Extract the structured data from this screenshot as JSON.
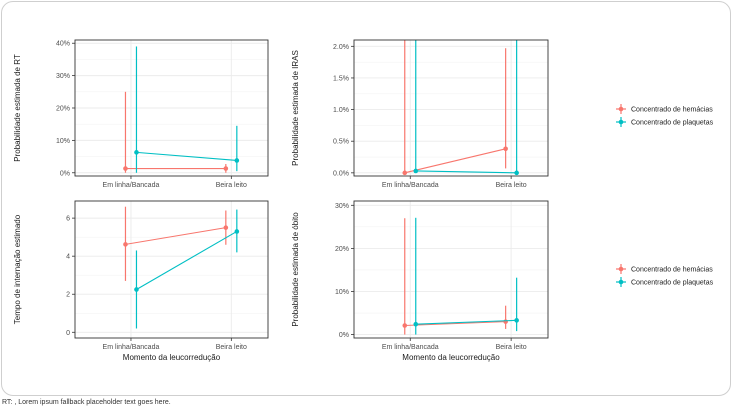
{
  "caption": "RT: , Lorem ipsum fallback placeholder text goes here.",
  "x_categories": [
    "Em linha/Bancada",
    "Beira leito"
  ],
  "shared_xlabel": "Momento da leucorredução",
  "legend": {
    "entries": [
      {
        "name": "Concentrado de hemácias",
        "color": "#F8766D"
      },
      {
        "name": "Concentrado de plaquetas",
        "color": "#00BFC4"
      }
    ]
  },
  "colors": {
    "hemacias": "#F8766D",
    "plaquetas": "#00BFC4",
    "grid": "#ebebeb",
    "panel_border": "#333333"
  },
  "chart_data": [
    {
      "type": "scatter",
      "ylabel": "Probabilidade estimada de RT",
      "xlabel": "",
      "categories": [
        "Em linha/Bancada",
        "Beira leito"
      ],
      "ylim": [
        -1,
        41
      ],
      "yticks": [
        0,
        10,
        20,
        30,
        40
      ],
      "ytick_labels": [
        "0%",
        "10%",
        "20%",
        "30%",
        "40%"
      ],
      "grid": true,
      "series": [
        {
          "name": "Concentrado de hemácias",
          "values": [
            1.3,
            1.3
          ],
          "lower": [
            0,
            0
          ],
          "upper": [
            25,
            2.7
          ]
        },
        {
          "name": "Concentrado de plaquetas",
          "values": [
            6.3,
            3.8
          ],
          "lower": [
            0,
            0.5
          ],
          "upper": [
            39,
            14.5
          ]
        }
      ]
    },
    {
      "type": "scatter",
      "ylabel": "Probabilidade estimada de IRAS",
      "xlabel": "",
      "categories": [
        "Em linha/Bancada",
        "Beira leito"
      ],
      "ylim": [
        -0.05,
        2.1
      ],
      "yticks": [
        0,
        0.5,
        1.0,
        1.5,
        2.0
      ],
      "ytick_labels": [
        "0.0%",
        "0.5%",
        "1.0%",
        "1.5%",
        "2.0%"
      ],
      "grid": true,
      "series": [
        {
          "name": "Concentrado de hemácias",
          "values": [
            0,
            0.38
          ],
          "lower": [
            0,
            0.07
          ],
          "upper": [
            2.1,
            1.97
          ]
        },
        {
          "name": "Concentrado de plaquetas",
          "values": [
            0.03,
            0
          ],
          "lower": [
            0,
            0
          ],
          "upper": [
            2.1,
            2.1
          ]
        }
      ]
    },
    {
      "type": "scatter",
      "ylabel": "Tempo de internação estimado",
      "xlabel": "Momento da leucorredução",
      "categories": [
        "Em linha/Bancada",
        "Beira leito"
      ],
      "ylim": [
        -0.3,
        6.9
      ],
      "yticks": [
        0,
        2,
        4,
        6
      ],
      "ytick_labels": [
        "0",
        "2",
        "4",
        "6"
      ],
      "grid": true,
      "series": [
        {
          "name": "Concentrado de hemácias",
          "values": [
            4.62,
            5.5
          ],
          "lower": [
            2.7,
            4.6
          ],
          "upper": [
            6.6,
            6.4
          ]
        },
        {
          "name": "Concentrado de plaquetas",
          "values": [
            2.25,
            5.3
          ],
          "lower": [
            0.2,
            4.2
          ],
          "upper": [
            4.3,
            6.45
          ]
        }
      ]
    },
    {
      "type": "scatter",
      "ylabel": "Probabilidade estimada de óbito",
      "xlabel": "Momento da leucorredução",
      "categories": [
        "Em linha/Bancada",
        "Beira leito"
      ],
      "ylim": [
        -0.8,
        31
      ],
      "yticks": [
        0,
        10,
        20,
        30
      ],
      "ytick_labels": [
        "0%",
        "10%",
        "20%",
        "30%"
      ],
      "grid": true,
      "series": [
        {
          "name": "Concentrado de hemácias",
          "values": [
            2.1,
            3.0
          ],
          "lower": [
            0,
            1.3
          ],
          "upper": [
            27,
            6.7
          ]
        },
        {
          "name": "Concentrado de plaquetas",
          "values": [
            2.4,
            3.3
          ],
          "lower": [
            0,
            0.8
          ],
          "upper": [
            27.1,
            13.2
          ]
        }
      ]
    }
  ]
}
